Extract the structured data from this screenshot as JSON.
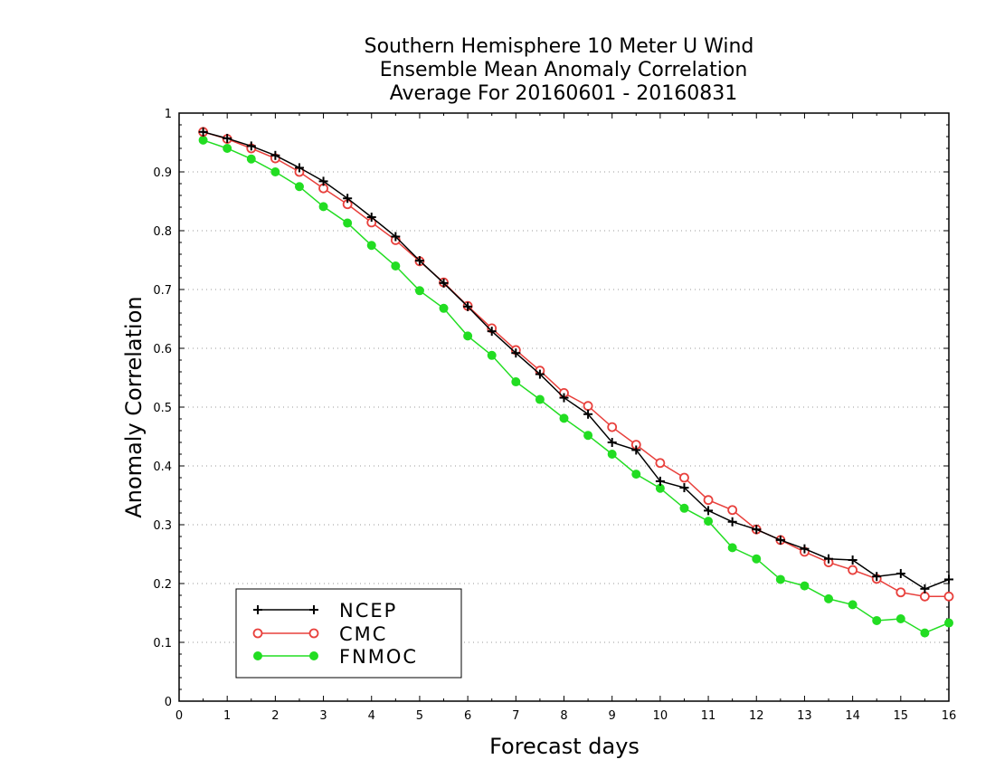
{
  "chart_data": {
    "type": "line",
    "title_lines": [
      "Southern Hemisphere 10 Meter U Wind",
      "Ensemble Mean Anomaly Correlation",
      "Average For 20160601 - 20160831"
    ],
    "xlabel": "Forecast days",
    "ylabel": "Anomaly Correlation",
    "xlim": [
      0,
      16
    ],
    "ylim": [
      0,
      1
    ],
    "x_ticks": [
      "0",
      "1",
      "2",
      "3",
      "4",
      "5",
      "6",
      "7",
      "8",
      "9",
      "10",
      "11",
      "12",
      "13",
      "14",
      "15",
      "16"
    ],
    "y_ticks": [
      "0",
      "0.1",
      "0.2",
      "0.3",
      "0.4",
      "0.5",
      "0.6",
      "0.7",
      "0.8",
      "0.9",
      "1"
    ],
    "grid": "horizontal dotted",
    "legend_placement": "bottom-left",
    "x": [
      0.5,
      1,
      1.5,
      2,
      2.5,
      3,
      3.5,
      4,
      4.5,
      5,
      5.5,
      6,
      6.5,
      7,
      7.5,
      8,
      8.5,
      9,
      9.5,
      10,
      10.5,
      11,
      11.5,
      12,
      12.5,
      13,
      13.5,
      14,
      14.5,
      15,
      15.5,
      16
    ],
    "series": [
      {
        "name": "NCEP",
        "color": "#000000",
        "marker": "plus",
        "values": [
          0.968,
          0.957,
          0.944,
          0.928,
          0.907,
          0.884,
          0.855,
          0.823,
          0.79,
          0.749,
          0.711,
          0.671,
          0.629,
          0.592,
          0.556,
          0.516,
          0.488,
          0.44,
          0.427,
          0.374,
          0.363,
          0.324,
          0.305,
          0.292,
          0.274,
          0.259,
          0.242,
          0.24,
          0.212,
          0.217,
          0.191,
          0.207
        ]
      },
      {
        "name": "CMC",
        "color": "#e8403c",
        "marker": "open-circle",
        "values": [
          0.968,
          0.956,
          0.94,
          0.923,
          0.9,
          0.872,
          0.845,
          0.814,
          0.784,
          0.748,
          0.712,
          0.672,
          0.634,
          0.597,
          0.562,
          0.524,
          0.502,
          0.466,
          0.436,
          0.405,
          0.38,
          0.342,
          0.325,
          0.292,
          0.274,
          0.254,
          0.236,
          0.223,
          0.208,
          0.185,
          0.178,
          0.178
        ]
      },
      {
        "name": "FNMOC",
        "color": "#22dd22",
        "marker": "filled-circle",
        "values": [
          0.954,
          0.94,
          0.922,
          0.9,
          0.875,
          0.841,
          0.813,
          0.775,
          0.74,
          0.698,
          0.668,
          0.621,
          0.588,
          0.543,
          0.513,
          0.481,
          0.452,
          0.42,
          0.386,
          0.362,
          0.328,
          0.306,
          0.261,
          0.242,
          0.207,
          0.196,
          0.174,
          0.164,
          0.137,
          0.14,
          0.116,
          0.133
        ]
      }
    ]
  }
}
